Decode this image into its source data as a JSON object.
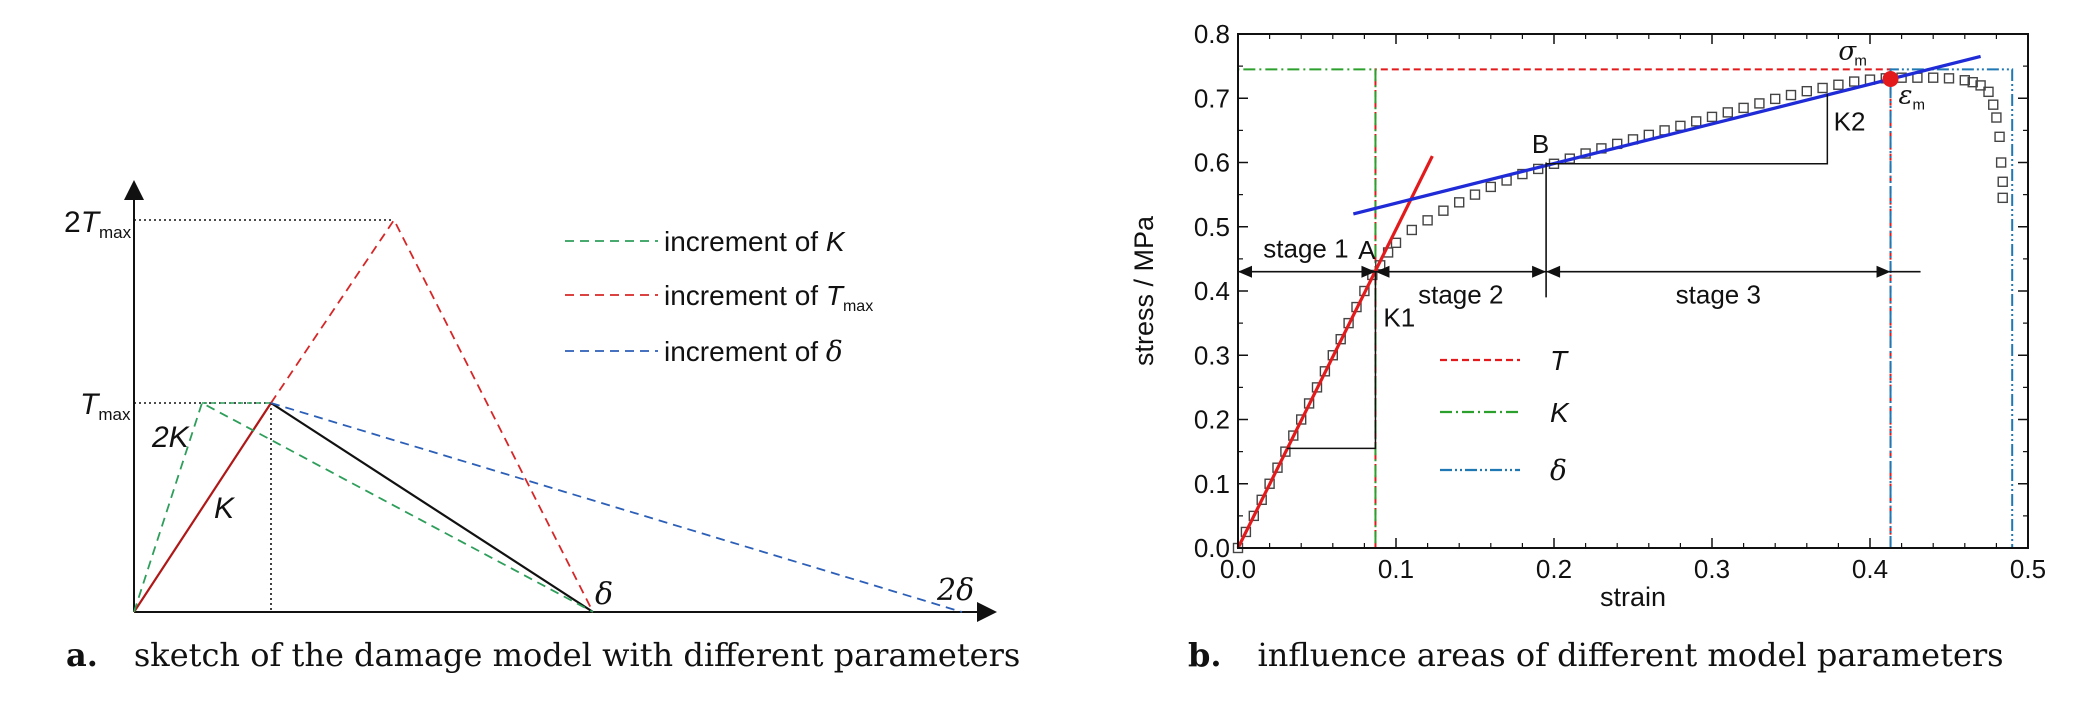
{
  "panel_a": {
    "caption_letter": "a.",
    "caption_text": "sketch of the damage model with different parameters",
    "y_labels": {
      "two_tmax_coef": "2",
      "tmax_symbol": "T",
      "tmax_sub": "max"
    },
    "x_labels": {
      "delta": "δ",
      "two_delta": "2δ"
    },
    "line_labels": {
      "k": "K",
      "two_k": "2K"
    },
    "legend": [
      {
        "prefix": "increment of ",
        "symbol": "K",
        "sub": "",
        "color": "#2e9e5b"
      },
      {
        "prefix": "increment of ",
        "symbol": "T",
        "sub": "max",
        "color": "#d62728"
      },
      {
        "prefix": "increment of ",
        "symbol": "δ",
        "sub": "",
        "color": "#2c5fb8"
      }
    ]
  },
  "chart_data": {
    "type": "scatter",
    "xlabel": "strain",
    "ylabel": "stress / MPa",
    "xlim": [
      0,
      0.5
    ],
    "ylim": [
      0,
      0.8
    ],
    "xticks": [
      "0.0",
      "0.1",
      "0.2",
      "0.3",
      "0.4",
      "0.5"
    ],
    "yticks": [
      "0.0",
      "0.1",
      "0.2",
      "0.3",
      "0.4",
      "0.5",
      "0.6",
      "0.7",
      "0.8"
    ],
    "grid": false,
    "legend_position": "center-left",
    "series": [
      {
        "name": "",
        "color": "#444444",
        "marker": "square",
        "x": [
          0.0,
          0.005,
          0.01,
          0.015,
          0.02,
          0.025,
          0.03,
          0.035,
          0.04,
          0.045,
          0.05,
          0.055,
          0.06,
          0.065,
          0.07,
          0.075,
          0.08,
          0.085,
          0.09,
          0.095,
          0.1,
          0.11,
          0.12,
          0.13,
          0.14,
          0.15,
          0.16,
          0.17,
          0.18,
          0.19,
          0.2,
          0.21,
          0.22,
          0.23,
          0.24,
          0.25,
          0.26,
          0.27,
          0.28,
          0.29,
          0.3,
          0.31,
          0.32,
          0.33,
          0.34,
          0.35,
          0.36,
          0.37,
          0.38,
          0.39,
          0.4,
          0.41,
          0.42,
          0.43,
          0.44,
          0.45,
          0.46,
          0.465,
          0.47,
          0.475,
          0.478,
          0.48,
          0.482,
          0.483,
          0.484,
          0.484
        ],
        "y": [
          0.0,
          0.025,
          0.05,
          0.075,
          0.1,
          0.125,
          0.15,
          0.175,
          0.2,
          0.225,
          0.25,
          0.275,
          0.3,
          0.325,
          0.35,
          0.375,
          0.4,
          0.425,
          0.44,
          0.46,
          0.475,
          0.495,
          0.51,
          0.525,
          0.538,
          0.55,
          0.562,
          0.572,
          0.582,
          0.59,
          0.598,
          0.606,
          0.614,
          0.622,
          0.629,
          0.636,
          0.643,
          0.65,
          0.657,
          0.664,
          0.671,
          0.678,
          0.685,
          0.692,
          0.699,
          0.705,
          0.711,
          0.716,
          0.721,
          0.726,
          0.729,
          0.731,
          0.732,
          0.732,
          0.732,
          0.731,
          0.728,
          0.725,
          0.72,
          0.71,
          0.69,
          0.67,
          0.64,
          0.6,
          0.57,
          0.545
        ]
      },
      {
        "name": "",
        "color": "#e31a1c",
        "type": "line",
        "x": [
          0.0,
          0.123
        ],
        "y": [
          0.0,
          0.61
        ]
      },
      {
        "name": "",
        "color": "#1f2bd6",
        "type": "line",
        "x": [
          0.073,
          0.47
        ],
        "y": [
          0.52,
          0.765
        ]
      },
      {
        "name": "T",
        "color": "#e31a1c",
        "style": "dash",
        "x": [
          0.087,
          0.087,
          0.413,
          0.413
        ],
        "y": [
          0.0,
          0.745,
          0.745,
          0.0
        ]
      },
      {
        "name": "K",
        "color": "#2ca02c",
        "style": "dashdot",
        "x": [
          0.0,
          0.0,
          0.087,
          0.087
        ],
        "y": [
          0.0,
          0.745,
          0.745,
          0.0
        ]
      },
      {
        "name": "δ",
        "color": "#1f77b4",
        "style": "dashdotdot",
        "x": [
          0.413,
          0.413,
          0.49,
          0.49
        ],
        "y": [
          0.0,
          0.745,
          0.745,
          0.0
        ]
      }
    ],
    "annotations": {
      "peak_point": {
        "x": 0.413,
        "y": 0.73,
        "sigma_label": "σ",
        "sigma_sub": "m",
        "epsilon_label": "ε",
        "epsilon_sub": "m"
      },
      "points": [
        {
          "label": "A",
          "x": 0.087,
          "y": 0.43
        },
        {
          "label": "B",
          "x": 0.195,
          "y": 0.595
        }
      ],
      "stages": [
        {
          "label": "stage 1",
          "x_from": 0.0,
          "x_to": 0.087
        },
        {
          "label": "stage 2",
          "x_from": 0.087,
          "x_to": 0.195
        },
        {
          "label": "stage 3",
          "x_from": 0.195,
          "x_to": 0.413
        }
      ],
      "stage_y": 0.43,
      "slope_labels": [
        {
          "label": "K1"
        },
        {
          "label": "K2"
        }
      ]
    },
    "caption_letter": "b.",
    "caption_text": "influence areas of different model parameters"
  }
}
